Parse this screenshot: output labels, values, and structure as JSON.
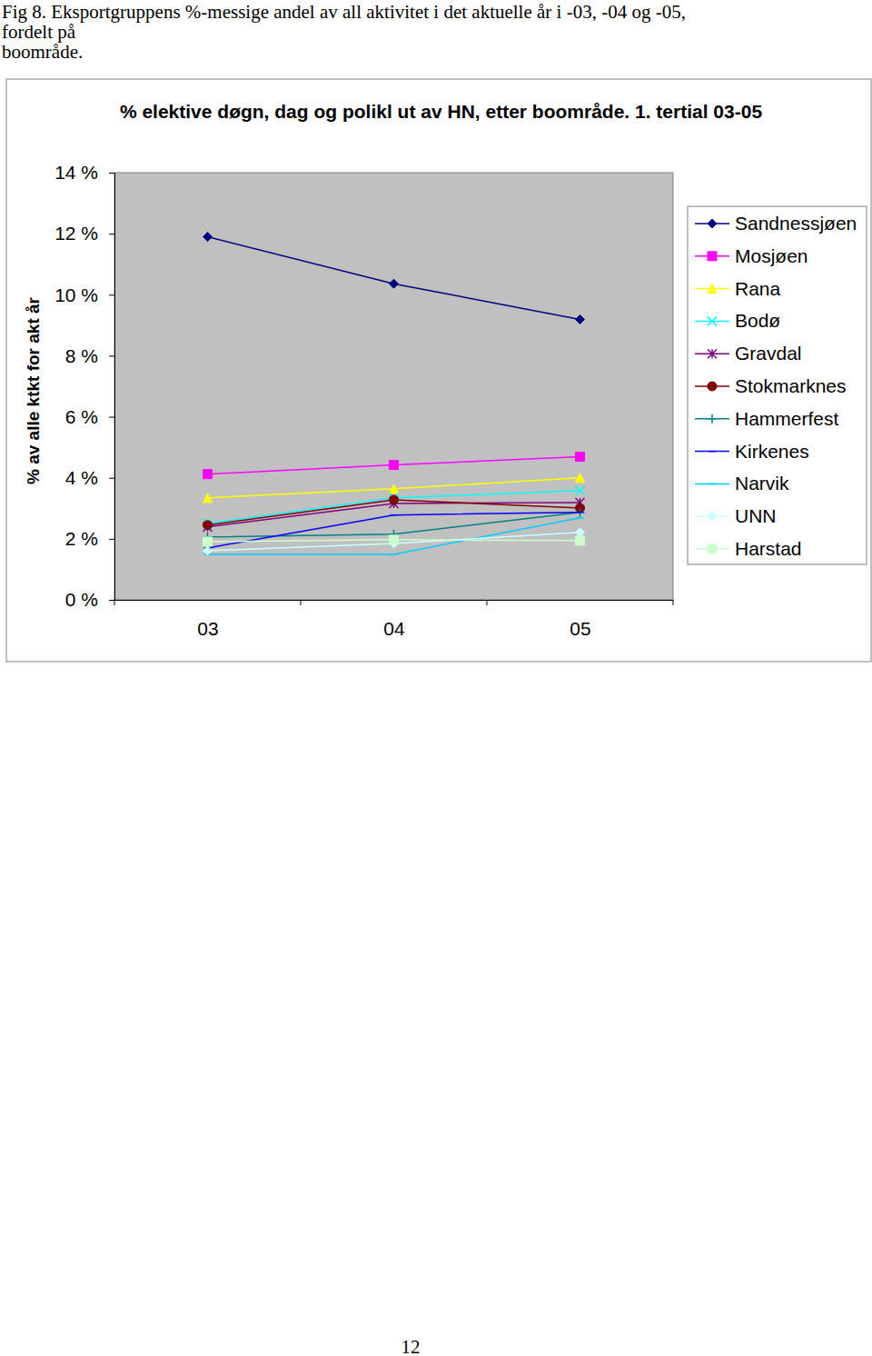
{
  "caption": [
    "Fig 8. Eksportgruppens %-messige andel av all aktivitet i det aktuelle år i -03, -04 og -05,",
    "fordelt på",
    "boområde."
  ],
  "page_number": "12",
  "chart_data": {
    "type": "line",
    "title": "% elektive døgn, dag og polikl ut av HN, etter boområde. 1. tertial 03-05",
    "y_label": "% av alle ktkt for akt år",
    "categories": [
      "03",
      "04",
      "05"
    ],
    "ylim": [
      0,
      14
    ],
    "yticks": [
      {
        "value": 0,
        "label": "0 %"
      },
      {
        "value": 2,
        "label": "2 %"
      },
      {
        "value": 4,
        "label": "4 %"
      },
      {
        "value": 6,
        "label": "6 %"
      },
      {
        "value": 8,
        "label": "8 %"
      },
      {
        "value": 10,
        "label": "10 %"
      },
      {
        "value": 12,
        "label": "12 %"
      },
      {
        "value": 14,
        "label": "14 %"
      }
    ],
    "grid": false,
    "legend": "right",
    "series": [
      {
        "name": "Sandnessjøen",
        "color": "#000080",
        "marker": "diamond",
        "values": [
          11.9,
          10.36,
          9.19
        ]
      },
      {
        "name": "Mosjøen",
        "color": "#ff00ff",
        "marker": "square",
        "values": [
          4.12,
          4.42,
          4.69
        ]
      },
      {
        "name": "Rana",
        "color": "#ffff00",
        "marker": "triangle",
        "values": [
          3.34,
          3.64,
          4.0
        ]
      },
      {
        "name": "Bodø",
        "color": "#00ffff",
        "marker": "x",
        "values": [
          2.5,
          3.34,
          3.58
        ]
      },
      {
        "name": "Gravdal",
        "color": "#800080",
        "marker": "star",
        "values": [
          2.39,
          3.16,
          3.19
        ]
      },
      {
        "name": "Stokmarknes",
        "color": "#800000",
        "marker": "circle",
        "values": [
          2.45,
          3.28,
          3.01
        ]
      },
      {
        "name": "Hammerfest",
        "color": "#008080",
        "marker": "plus",
        "values": [
          2.06,
          2.15,
          2.87
        ]
      },
      {
        "name": "Kirkenes",
        "color": "#0000ff",
        "marker": "dash",
        "values": [
          1.7,
          2.78,
          2.87
        ]
      },
      {
        "name": "Narvik",
        "color": "#00ccff",
        "marker": "dash",
        "values": [
          1.49,
          1.49,
          2.69
        ]
      },
      {
        "name": "UNN",
        "color": "#ccffff",
        "marker": "diamond",
        "values": [
          1.61,
          1.85,
          2.21
        ]
      },
      {
        "name": "Harstad",
        "color": "#ccffcc",
        "marker": "square",
        "values": [
          1.91,
          1.97,
          1.94
        ]
      }
    ]
  }
}
